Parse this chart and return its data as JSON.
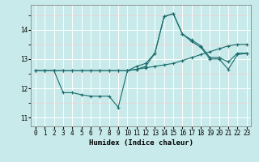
{
  "xlabel": "Humidex (Indice chaleur)",
  "bg_color": "#c8eaea",
  "grid_major_color": "#ffffff",
  "grid_minor_color": "#f5d0d0",
  "line_color": "#1a6b6b",
  "xlim": [
    -0.5,
    23.5
  ],
  "ylim": [
    10.7,
    14.85
  ],
  "yticks": [
    11,
    12,
    13,
    14
  ],
  "mean_y": [
    12.6,
    12.6,
    12.6,
    12.6,
    12.6,
    12.6,
    12.6,
    12.6,
    12.6,
    12.6,
    12.6,
    12.65,
    12.75,
    13.2,
    14.45,
    14.55,
    13.85,
    13.6,
    13.4,
    13.0,
    13.0,
    12.65,
    13.15,
    13.2
  ],
  "max_y": [
    12.6,
    12.6,
    12.6,
    12.6,
    12.6,
    12.6,
    12.6,
    12.6,
    12.6,
    12.6,
    12.6,
    12.75,
    12.85,
    13.2,
    14.45,
    14.55,
    13.85,
    13.65,
    13.45,
    13.05,
    13.05,
    12.9,
    13.2,
    13.2
  ],
  "min_y": [
    12.6,
    12.6,
    12.6,
    11.85,
    11.85,
    11.78,
    11.73,
    11.73,
    11.73,
    11.35,
    12.6,
    12.65,
    12.7,
    12.75,
    12.8,
    12.85,
    12.95,
    13.05,
    13.15,
    13.25,
    13.35,
    13.45,
    13.5,
    13.5
  ]
}
